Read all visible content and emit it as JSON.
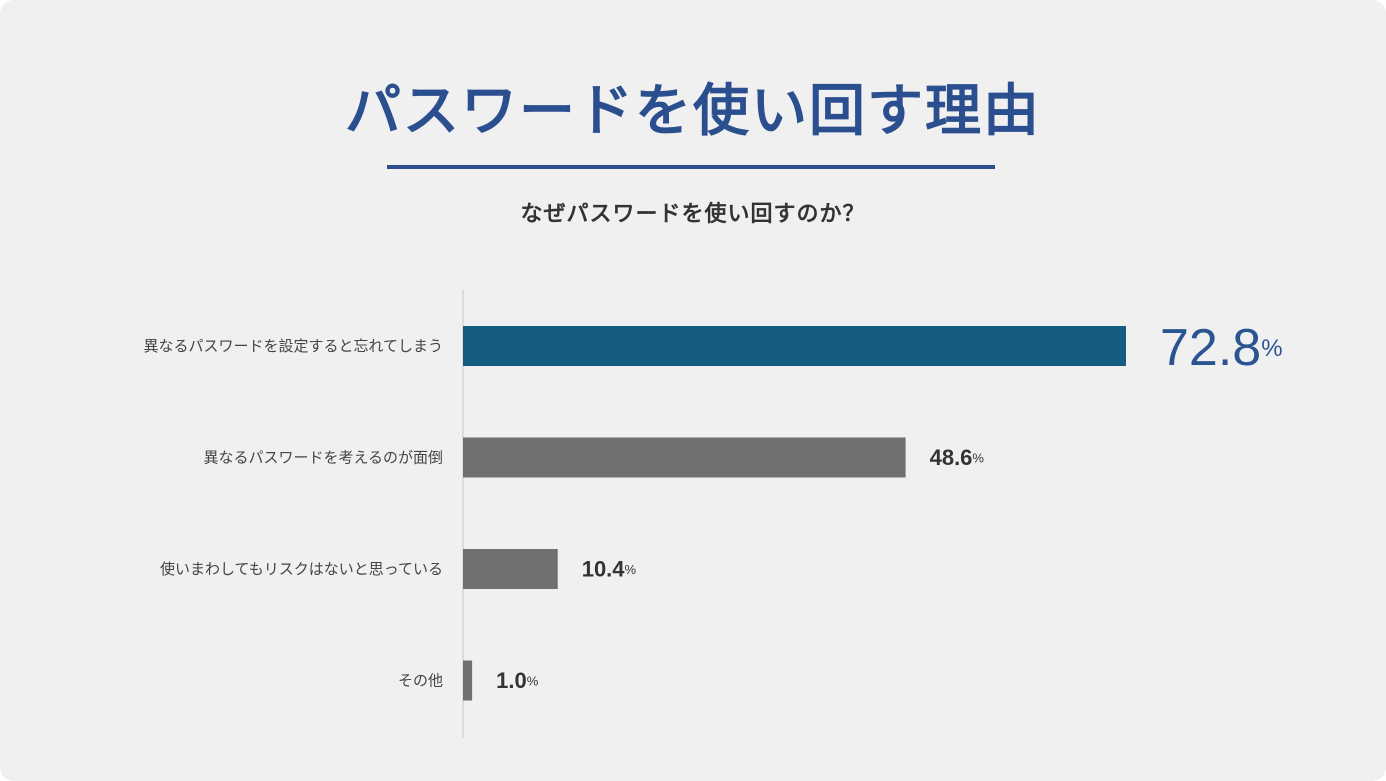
{
  "header": {
    "title": "パスワードを使い回す理由",
    "subtitle": "なぜパスワードを使い回すのか？"
  },
  "colors": {
    "highlight_bar": "#155d80",
    "highlight_value": "#2b5592",
    "bar": "#707070",
    "title": "#2b4f8e",
    "axis": "#d6d6d6"
  },
  "chart_data": {
    "type": "bar",
    "orientation": "horizontal",
    "categories": [
      "異なるパスワードを設定すると忘れてしまう",
      "異なるパスワードを考えるのが面倒",
      "使いまわしてもリスクはないと思っている",
      "その他"
    ],
    "values": [
      72.8,
      48.6,
      10.4,
      1.0
    ],
    "value_labels": [
      "72.8",
      "48.6",
      "10.4",
      "1.0"
    ],
    "unit": "%",
    "highlight_index": 0,
    "xlim": [
      0,
      72.8
    ]
  }
}
